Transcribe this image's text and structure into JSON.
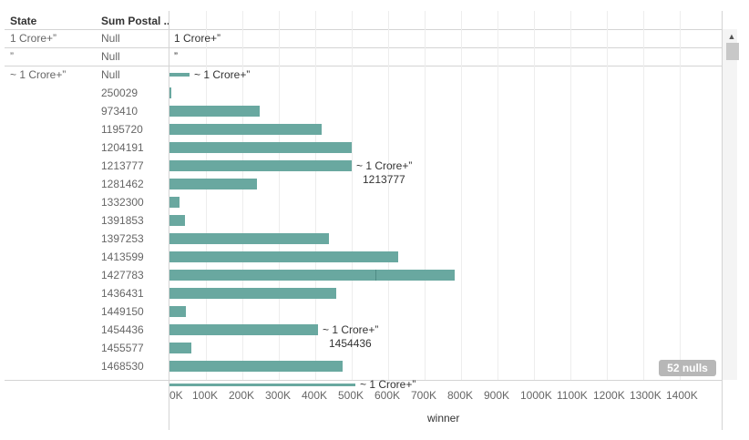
{
  "headers": {
    "state": "State",
    "sum_postal": "Sum Postal .."
  },
  "null_badge": "52 nulls",
  "chart_data": {
    "type": "bar",
    "orientation": "horizontal",
    "xlabel": "winner",
    "xlim": [
      0,
      1400000
    ],
    "x_ticks": [
      "0K",
      "100K",
      "200K",
      "300K",
      "400K",
      "500K",
      "600K",
      "700K",
      "800K",
      "900K",
      "1000K",
      "1100K",
      "1200K",
      "1300K",
      "1400K"
    ],
    "groups": [
      {
        "state": "1 Crore+”",
        "rows": [
          {
            "postal": "Null",
            "value": null,
            "label": "1 Crore+”"
          }
        ]
      },
      {
        "state": "”",
        "rows": [
          {
            "postal": "Null",
            "value": null,
            "label": "”"
          }
        ]
      },
      {
        "state": "~ 1 Crore+”",
        "rows": [
          {
            "postal": "Null",
            "value": 55000,
            "label": "~ 1 Crore+”"
          },
          {
            "postal": "250029",
            "value": 3000
          },
          {
            "postal": "973410",
            "value": 247000
          },
          {
            "postal": "1195720",
            "value": 417000
          },
          {
            "postal": "1204191",
            "value": 500000
          },
          {
            "postal": "1213777",
            "value": 500000,
            "label": "~ 1 Crore+”",
            "label2": "1213777"
          },
          {
            "postal": "1281462",
            "value": 240000
          },
          {
            "postal": "1332300",
            "value": 27000
          },
          {
            "postal": "1391853",
            "value": 42000
          },
          {
            "postal": "1397253",
            "value": 437000
          },
          {
            "postal": "1413599",
            "value": 627000
          },
          {
            "postal": "1427783",
            "value": 782000,
            "value_front": 565000
          },
          {
            "postal": "1436431",
            "value": 457000
          },
          {
            "postal": "1449150",
            "value": 45000
          },
          {
            "postal": "1454436",
            "value": 407000,
            "label": "~ 1 Crore+”",
            "label2": "1454436"
          },
          {
            "postal": "1455577",
            "value": 60000
          },
          {
            "postal": "1468530",
            "value": 475000
          },
          {
            "postal": "",
            "value": 510000,
            "label": "~ 1 Crore+”",
            "partial": true
          }
        ]
      }
    ]
  }
}
